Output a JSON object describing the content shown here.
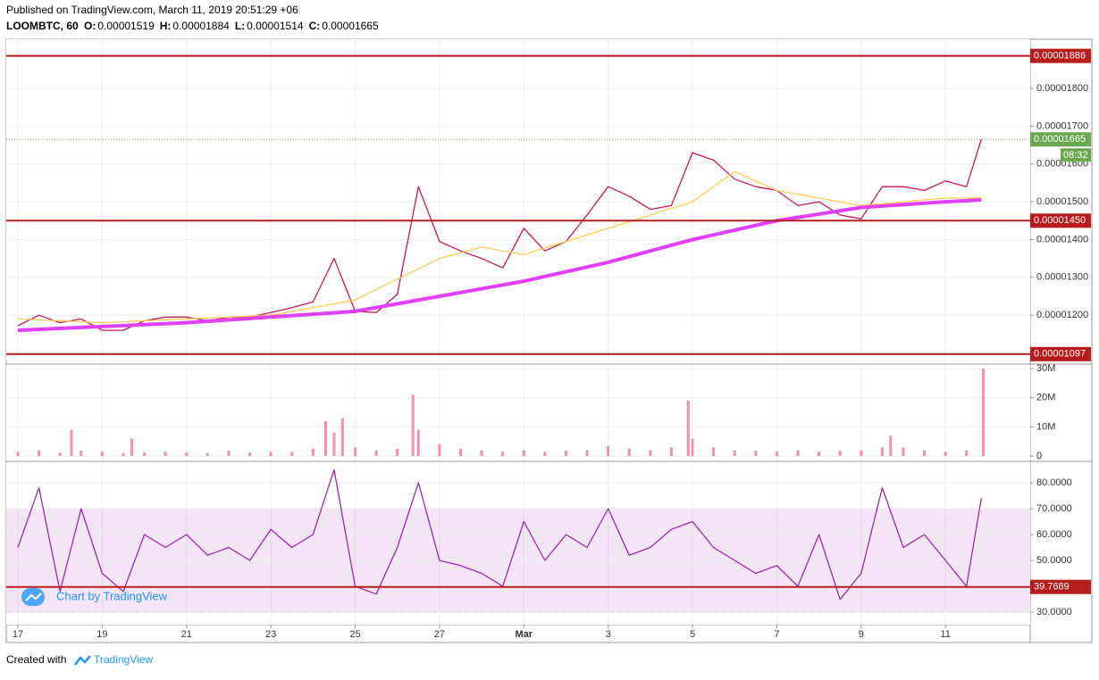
{
  "header": {
    "published": "Published on TradingView.com, March 11, 2019 20:51:29 +06",
    "symbol": "LOOMBTC, 60",
    "ohlc": [
      {
        "label": "O:",
        "value": "0.00001519"
      },
      {
        "label": "H:",
        "value": "0.00001884"
      },
      {
        "label": "L:",
        "value": "0.00001514"
      },
      {
        "label": "C:",
        "value": "0.00001665"
      }
    ]
  },
  "watermark": "Chart by TradingView",
  "footer": {
    "text": "Created with",
    "brand": "TradingView"
  },
  "chart_data": [
    {
      "type": "line",
      "grid": true,
      "x": [
        0,
        0.5,
        1,
        1.5,
        2,
        2.5,
        3,
        3.5,
        4,
        4.5,
        5,
        5.5,
        6,
        6.5,
        7,
        7.5,
        8,
        8.5,
        9,
        9.5,
        10,
        10.5,
        11,
        11.5,
        12,
        12.5,
        13,
        13.5,
        14,
        14.5,
        15,
        15.5,
        16,
        16.5,
        17,
        17.5,
        18,
        18.5,
        19,
        19.5,
        20,
        20.5,
        21,
        21.5,
        22,
        22.5,
        22.85
      ],
      "series": [
        {
          "color": "#c2185b",
          "values": [
            1.172e-05,
            1.2e-05,
            1.18e-05,
            1.19e-05,
            1.16e-05,
            1.16e-05,
            1.185e-05,
            1.195e-05,
            1.195e-05,
            1.185e-05,
            1.195e-05,
            1.195e-05,
            1.207e-05,
            1.22e-05,
            1.235e-05,
            1.35e-05,
            1.21e-05,
            1.207e-05,
            1.255e-05,
            1.54e-05,
            1.395e-05,
            1.37e-05,
            1.35e-05,
            1.325e-05,
            1.43e-05,
            1.37e-05,
            1.395e-05,
            1.465e-05,
            1.54e-05,
            1.515e-05,
            1.48e-05,
            1.49e-05,
            1.63e-05,
            1.61e-05,
            1.56e-05,
            1.54e-05,
            1.53e-05,
            1.49e-05,
            1.5e-05,
            1.465e-05,
            1.455e-05,
            1.54e-05,
            1.54e-05,
            1.53e-05,
            1.555e-05,
            1.54e-05,
            1.665e-05
          ]
        },
        {
          "color": "#ffcc55",
          "x": [
            0,
            2,
            4,
            6,
            8,
            10,
            11,
            12,
            14,
            16,
            17,
            18,
            20,
            22,
            22.85
          ],
          "values": [
            1.19e-05,
            1.18e-05,
            1.19e-05,
            1.2e-05,
            1.24e-05,
            1.35e-05,
            1.38e-05,
            1.36e-05,
            1.43e-05,
            1.5e-05,
            1.58e-05,
            1.53e-05,
            1.49e-05,
            1.51e-05,
            1.51e-05
          ]
        },
        {
          "color": "#e040fb",
          "width": 4,
          "x": [
            0,
            2,
            4,
            6,
            8,
            10,
            12,
            14,
            16,
            18,
            20,
            22,
            22.85
          ],
          "values": [
            1.16e-05,
            1.17e-05,
            1.18e-05,
            1.195e-05,
            1.21e-05,
            1.25e-05,
            1.29e-05,
            1.34e-05,
            1.4e-05,
            1.45e-05,
            1.485e-05,
            1.5e-05,
            1.505e-05
          ]
        }
      ],
      "xlim": [
        -0.276,
        24.01
      ],
      "ylim": [
        1.08e-05,
        1.93e-05
      ],
      "yticks": [
        {
          "value": 1.2e-05,
          "label": "0.00001200"
        },
        {
          "value": 1.3e-05,
          "label": "0.00001300"
        },
        {
          "value": 1.4e-05,
          "label": "0.00001400"
        },
        {
          "value": 1.5e-05,
          "label": "0.00001500"
        },
        {
          "value": 1.6e-05,
          "label": "0.00001600"
        },
        {
          "value": 1.7e-05,
          "label": "0.00001700"
        },
        {
          "value": 1.8e-05,
          "label": "0.00001800"
        }
      ],
      "levels": [
        {
          "value": 1.886e-05,
          "label": "0.00001886"
        },
        {
          "value": 1.45e-05,
          "label": "0.00001450"
        },
        {
          "value": 1.097e-05,
          "label": "0.00001097"
        }
      ],
      "level_color": "#b71c1c",
      "last": 1.665e-05,
      "last_color": "#6aa84f",
      "countdown": "08:32"
    },
    {
      "type": "bar",
      "grid": true,
      "color": "#f48fb1",
      "x": [
        0,
        0.5,
        1,
        1.27,
        1.5,
        2,
        2.5,
        2.7,
        3,
        3.5,
        4,
        4.5,
        5,
        5.5,
        6,
        6.5,
        7,
        7.3,
        7.5,
        7.7,
        8,
        8.5,
        9,
        9.37,
        9.5,
        10,
        10.5,
        11,
        11.5,
        12,
        12.5,
        13,
        13.5,
        14,
        14.5,
        15,
        15.5,
        15.9,
        16,
        16.5,
        17,
        17.5,
        18,
        18.5,
        19,
        19.5,
        20,
        20.5,
        20.7,
        21,
        21.5,
        22,
        22.5,
        22.9
      ],
      "values": [
        1500000,
        2000000,
        1200000,
        9000000,
        1800000,
        1500000,
        1000000,
        6000000,
        1200000,
        1500000,
        1300000,
        1000000,
        1800000,
        1200000,
        1500000,
        1400000,
        2500000,
        12000000,
        8000000,
        13000000,
        3000000,
        2000000,
        2500000,
        21000000,
        9000000,
        4000000,
        2500000,
        2000000,
        1500000,
        2000000,
        1500000,
        1800000,
        2000000,
        3500000,
        2500000,
        2000000,
        3000000,
        19000000,
        6000000,
        3000000,
        2000000,
        1800000,
        1500000,
        2000000,
        1500000,
        1800000,
        2000000,
        3000000,
        7000000,
        3000000,
        2000000,
        1500000,
        2000000,
        30000000
      ],
      "xlim": [
        -0.276,
        24.01
      ],
      "ylim": [
        -1500000,
        31200000
      ],
      "yticks": [
        0,
        {
          "value": 10000000,
          "label": "10M"
        },
        {
          "value": 20000000,
          "label": "20M"
        },
        {
          "value": 30000000,
          "label": "30M"
        }
      ]
    },
    {
      "type": "line",
      "grid": true,
      "x": [
        0,
        0.5,
        1,
        1.5,
        2,
        2.5,
        3,
        3.5,
        4,
        4.5,
        5,
        5.5,
        6,
        6.5,
        7,
        7.5,
        8,
        8.5,
        9,
        9.5,
        10,
        10.5,
        11,
        11.5,
        12,
        12.5,
        13,
        13.5,
        14,
        14.5,
        15,
        15.5,
        16,
        16.5,
        17,
        17.5,
        18,
        18.5,
        19,
        19.5,
        20,
        20.5,
        21,
        21.5,
        22,
        22.5,
        22.85
      ],
      "series": [
        {
          "color": "#9c27b0",
          "values": [
            55,
            78,
            38,
            70,
            45,
            38,
            60,
            55,
            60,
            52,
            55,
            50,
            62,
            55,
            60,
            85,
            40,
            37,
            55,
            80,
            50,
            48,
            45,
            40,
            65,
            50,
            60,
            55,
            70,
            52,
            55,
            62,
            65,
            55,
            50,
            45,
            48,
            40,
            60,
            35,
            45,
            78,
            55,
            60,
            50,
            40,
            74
          ]
        }
      ],
      "xlim": [
        -0.276,
        24.01
      ],
      "ylim": [
        25.2,
        87.9
      ],
      "yticks": [
        {
          "value": 30,
          "label": "30.0000"
        },
        {
          "value": 40,
          "label": "40.0000"
        },
        {
          "value": 50,
          "label": "50.0000"
        },
        {
          "value": 60,
          "label": "60.0000"
        },
        {
          "value": 70,
          "label": "70.0000"
        },
        {
          "value": 80,
          "label": "80.0000"
        }
      ],
      "band": [
        30,
        70
      ],
      "band_color": "#9c27b0",
      "level": 39.7689,
      "level_color": "#b71c1c",
      "xticks": [
        {
          "value": 0,
          "label": "17"
        },
        {
          "value": 2,
          "label": "19"
        },
        {
          "value": 4,
          "label": "21"
        },
        {
          "value": 6,
          "label": "23"
        },
        {
          "value": 8,
          "label": "25"
        },
        {
          "value": 10,
          "label": "27"
        },
        {
          "value": 12,
          "label": "Mar"
        },
        {
          "value": 14,
          "label": "3"
        },
        {
          "value": 16,
          "label": "5"
        },
        {
          "value": 18,
          "label": "7"
        },
        {
          "value": 20,
          "label": "9"
        },
        {
          "value": 22,
          "label": "11"
        }
      ]
    }
  ]
}
